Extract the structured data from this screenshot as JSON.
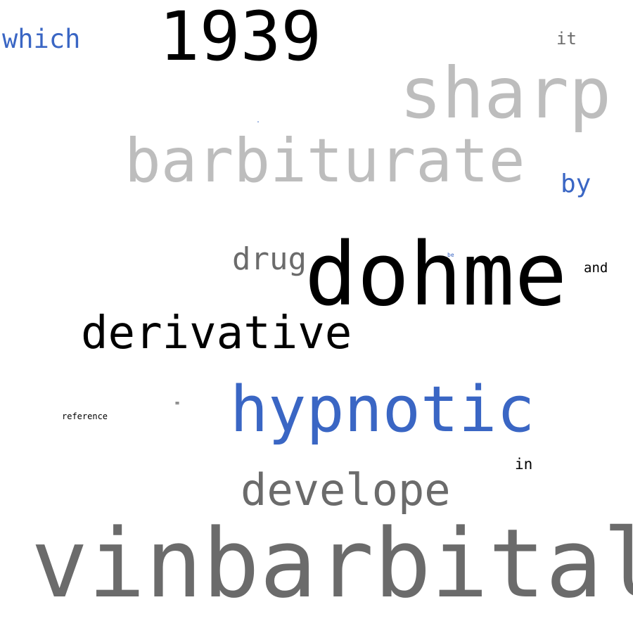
{
  "palette": {
    "black": "#000000",
    "dark_gray": "#6b6b6b",
    "light_gray": "#bdbdbd",
    "blue": "#3a66c4"
  },
  "words": {
    "w_1939": {
      "text": "1939",
      "color": "#000000"
    },
    "which": {
      "text": "which",
      "color": "#3a66c4"
    },
    "it": {
      "text": "it",
      "color": "#6b6b6b"
    },
    "sharp": {
      "text": "sharp",
      "color": "#bdbdbd"
    },
    "barbiturate": {
      "text": "barbiturate",
      "color": "#bdbdbd"
    },
    "by": {
      "text": "by",
      "color": "#3a66c4"
    },
    "drug": {
      "text": "drug",
      "color": "#6b6b6b"
    },
    "dohme": {
      "text": "dohme",
      "color": "#000000"
    },
    "be": {
      "text": "be",
      "color": "#3a66c4"
    },
    "and": {
      "text": "and",
      "color": "#000000"
    },
    "derivative": {
      "text": "derivative",
      "color": "#000000"
    },
    "eq": {
      "text": "=",
      "color": "#000000"
    },
    "reference": {
      "text": "reference",
      "color": "#000000"
    },
    "hypnotic": {
      "text": "hypnotic",
      "color": "#3a66c4"
    },
    "in": {
      "text": "in",
      "color": "#000000"
    },
    "develope": {
      "text": "develope",
      "color": "#6b6b6b"
    },
    "vinbarbital": {
      "text": "vinbarbital",
      "color": "#6b6b6b"
    },
    "dot": {
      "text": ".",
      "color": "#3a66c4"
    }
  }
}
